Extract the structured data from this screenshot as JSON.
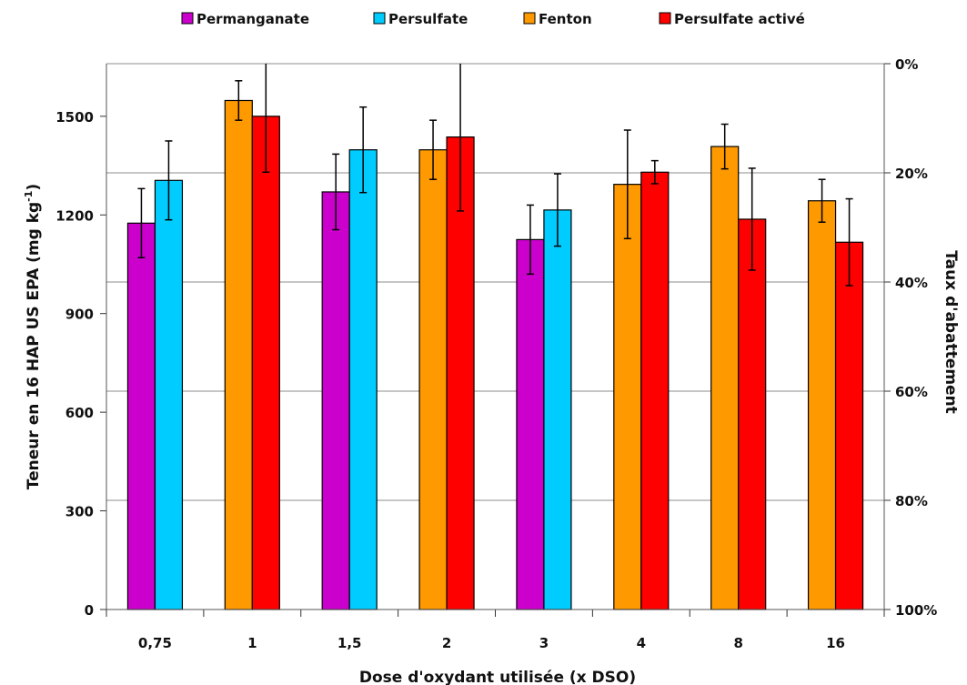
{
  "chart_data": {
    "type": "bar",
    "categories": [
      "0,75",
      "1",
      "1,5",
      "2",
      "3",
      "4",
      "8",
      "16"
    ],
    "xlabel": "Dose d'oxydant utilisée (x DSO)",
    "ylabel_main": "Teneur en 16 HAP US EPA (mg kg",
    "ylabel_sup": "-1",
    "ylabel_close": ")",
    "ylabel_right": "Taux d'abattement",
    "ylim": [
      0,
      1660
    ],
    "yticks": [
      0,
      300,
      600,
      900,
      1200,
      1500
    ],
    "y2ticks": [
      "0%",
      "20%",
      "40%",
      "60%",
      "80%",
      "100%"
    ],
    "y2_reference": 1660,
    "legend_position": "top",
    "series": [
      {
        "name": "Permanganate",
        "color": "#cc00cc",
        "values": [
          1175,
          null,
          1270,
          null,
          1125,
          null,
          null,
          null
        ],
        "errors": [
          105,
          null,
          115,
          null,
          105,
          null,
          null,
          null
        ]
      },
      {
        "name": "Persulfate",
        "color": "#00ccff",
        "values": [
          1305,
          null,
          1398,
          null,
          1215,
          null,
          null,
          null
        ],
        "errors": [
          120,
          null,
          130,
          null,
          110,
          null,
          null,
          null
        ]
      },
      {
        "name": "Fenton",
        "color": "#ff9900",
        "values": [
          null,
          1548,
          null,
          1398,
          null,
          1293,
          1408,
          1243
        ],
        "errors": [
          null,
          60,
          null,
          90,
          null,
          165,
          68,
          65
        ]
      },
      {
        "name": "Persulfate activé",
        "color": "#ff0000",
        "values": [
          null,
          1500,
          null,
          1437,
          null,
          1330,
          1187,
          1117
        ],
        "errors": [
          null,
          170,
          null,
          225,
          null,
          35,
          155,
          132
        ]
      }
    ]
  }
}
